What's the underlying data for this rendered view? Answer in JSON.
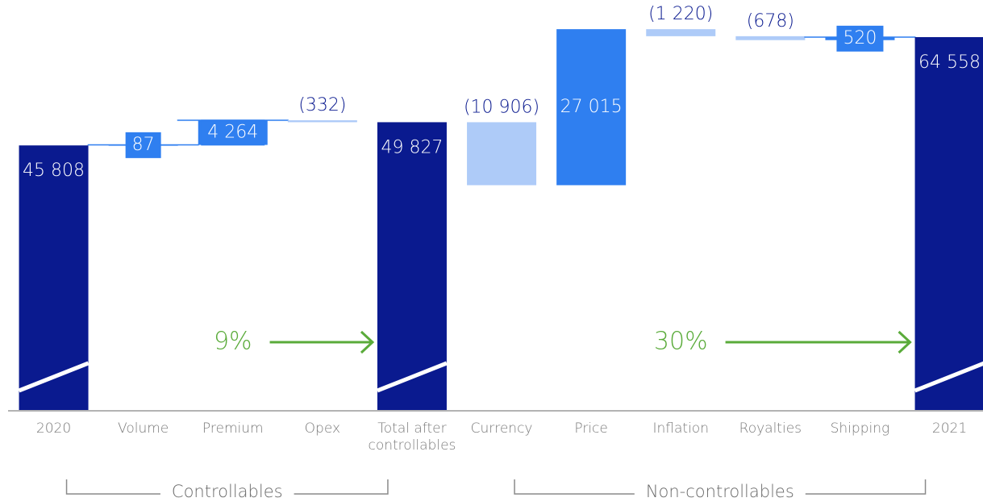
{
  "chart_data": {
    "type": "waterfall",
    "categories": [
      "2020",
      "Volume",
      "Premium",
      "Opex",
      "Total after controllables",
      "Currency",
      "Price",
      "Inflation",
      "Royalties",
      "Shipping",
      "2021"
    ],
    "values": [
      45808,
      87,
      4264,
      -332,
      49827,
      -10906,
      27015,
      -1220,
      -678,
      520,
      64558
    ],
    "value_labels": [
      "45 808",
      "87",
      "4 264",
      "(332)",
      "49 827",
      "(10 906)",
      "27 015",
      "(1 220)",
      "(678)",
      "520",
      "64 558"
    ],
    "is_total": [
      true,
      false,
      false,
      false,
      true,
      false,
      false,
      false,
      false,
      false,
      true
    ],
    "colors": {
      "total": "#0a1a8f",
      "increase": "#2f7ff0",
      "decrease": "#aecbf8"
    },
    "annotations": [
      {
        "text": "9%",
        "from": 0,
        "to": 4
      },
      {
        "text": "30%",
        "from": 4,
        "to": 10
      }
    ],
    "groups": [
      {
        "label": "Controllables",
        "from": 0,
        "to": 4
      },
      {
        "label": "Non-controllables",
        "from": 5,
        "to": 10
      }
    ]
  }
}
